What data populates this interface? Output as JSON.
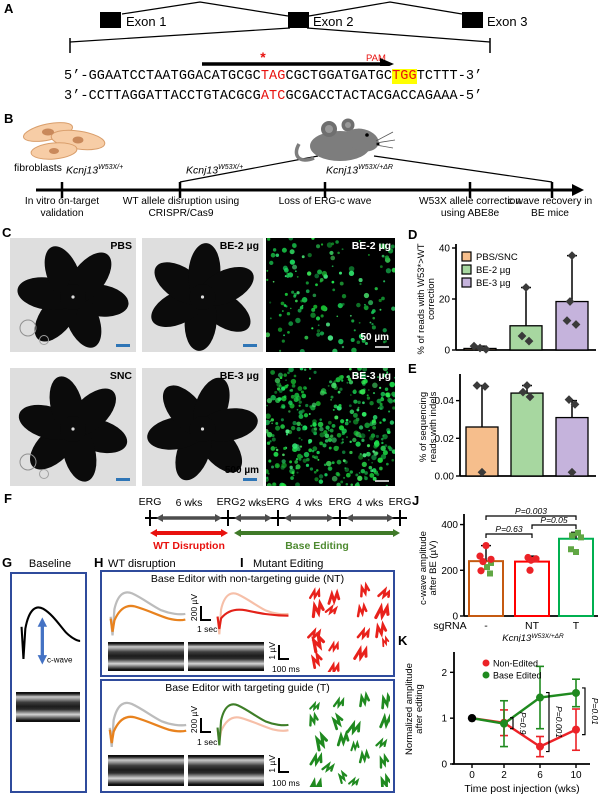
{
  "panelA": {
    "label": "A",
    "exons": [
      "Exon 1",
      "Exon 2",
      "Exon 3"
    ],
    "pam": "PAM",
    "star": "*",
    "seq_top": [
      {
        "t": "5’-GGAATCCTAATGGACATGCGC"
      },
      {
        "t": "TAG",
        "red": true
      },
      {
        "t": "CGCTGGATGATGC"
      },
      {
        "t": "TGG",
        "red": true,
        "hl": true
      },
      {
        "t": "TCTTT-3’"
      }
    ],
    "seq_bottom": [
      {
        "t": "3’-CCTTAGGATTACCTGTACGCG"
      },
      {
        "t": "ATC",
        "red": true
      },
      {
        "t": "GCGACCTACTACGACCAGAAA"
      },
      {
        "t": "-5’"
      }
    ]
  },
  "panelB": {
    "label": "B",
    "fibroblasts": "fibroblasts",
    "genotypes": [
      {
        "gene": "Kcnj13",
        "sup": "W53X/+"
      },
      {
        "gene": "Kcnj13",
        "sup": "W53X/+"
      },
      {
        "gene": "Kcnj13",
        "sup": "W53X/+ΔR"
      }
    ],
    "milestones": [
      "In vitro on-target validation",
      "WT allele disruption using CRISPR/Cas9",
      "Loss of ERG-c wave",
      "W53X allele correction using ABE8e",
      "c wave recovery in BE mice"
    ]
  },
  "panelC": {
    "label": "C",
    "tiles": [
      {
        "tag": "PBS",
        "type": "flat"
      },
      {
        "tag": "BE-2 µg",
        "type": "flat"
      },
      {
        "tag": "BE-2 µg",
        "type": "fluor",
        "scale": "50 µm",
        "density": "sparse"
      },
      {
        "tag": "SNC",
        "type": "flat"
      },
      {
        "tag": "BE-3 µg",
        "type": "flat",
        "scale": "500 µm"
      },
      {
        "tag": "BE-3 µg",
        "type": "fluor",
        "density": "dense"
      }
    ]
  },
  "panelD": {
    "label": "D"
  },
  "panelE": {
    "label": "E"
  },
  "panelF": {
    "label": "F",
    "erg": "ERG",
    "intervals": [
      "6 wks",
      "2 wks",
      "4 wks",
      "4 wks"
    ],
    "red_label": "WT Disruption",
    "green_label": "Base Editing"
  },
  "panelG": {
    "label": "G",
    "title": "Baseline",
    "cwave": "c-wave"
  },
  "panelH": {
    "label": "H",
    "title": "WT disruption",
    "box_nt": "Base Editor with non-targeting guide (NT)",
    "box_t": "Base Editor with targeting guide (T)",
    "scale_v": "200 µV",
    "scale_h": "1 sec"
  },
  "panelI": {
    "label": "I",
    "title": "Mutant Editing",
    "scale_v": "1 µV",
    "scale_h": "100 ms",
    "red_spike_count": 17,
    "green_spike_count": 20,
    "red_color": "#e8211b",
    "green_color": "#1f8a1f"
  },
  "panelJ": {
    "label": "J"
  },
  "panelK": {
    "label": "K"
  },
  "chart_data": [
    {
      "id": "D",
      "type": "bar",
      "categories": [
        "PBS/SNC",
        "BE-2 µg",
        "BE-3 µg"
      ],
      "values": [
        0.6,
        9.5,
        19
      ],
      "err_top": [
        1.5,
        24.5,
        37
      ],
      "points": [
        [
          1.5,
          0.8,
          0.3
        ],
        [
          24.5,
          5.5,
          3.5
        ],
        [
          37,
          19,
          11.5,
          10
        ]
      ],
      "bar_colors": [
        "#f6be8c",
        "#a7d7a0",
        "#c5b3dc"
      ],
      "ylabel": [
        "% of reads with W53*>WT",
        "correction"
      ],
      "yticks": [
        0,
        20,
        40
      ],
      "ytick_labels": [
        "0",
        "20",
        "40"
      ],
      "ylim": [
        0,
        40
      ],
      "legend": [
        "PBS/SNC",
        "BE-2 µg",
        "BE-3 µg"
      ],
      "legend_pos": "top-left",
      "grid": false
    },
    {
      "id": "E",
      "type": "bar",
      "categories": [
        "PBS/SNC",
        "BE-2 µg",
        "BE-3 µg"
      ],
      "values": [
        0.026,
        0.044,
        0.031
      ],
      "err_top": [
        0.048,
        0.048,
        0.04
      ],
      "points": [
        [
          0.048,
          0.0475,
          0.002
        ],
        [
          0.048,
          0.0445,
          0.042
        ],
        [
          0.0405,
          0.038,
          0.002
        ]
      ],
      "bar_colors": [
        "#f6be8c",
        "#a7d7a0",
        "#c5b3dc"
      ],
      "ylabel": [
        "% of sequencing",
        "reads with indels"
      ],
      "yticks": [
        0,
        0.02,
        0.04
      ],
      "ytick_labels": [
        "0.00",
        "0.02",
        "0.04"
      ],
      "ylim": [
        0,
        0.052
      ],
      "grid": false
    },
    {
      "id": "J",
      "type": "bar",
      "x_prefix": "sgRNA",
      "categories": [
        "-",
        "NT",
        "T"
      ],
      "values": [
        240,
        238,
        338
      ],
      "err_top": [
        308,
        262,
        366
      ],
      "edge_colors": [
        "#c55a11",
        "#ff0000",
        "#00b050"
      ],
      "points_red": [
        [
          308,
          262,
          248,
          238,
          198
        ],
        [
          256,
          250,
          244,
          200
        ],
        []
      ],
      "points_green": [
        [
          232,
          214,
          186
        ],
        [],
        [
          364,
          352,
          344,
          292,
          280
        ]
      ],
      "point_red_color": "#ec2227",
      "point_green_color": "#61a744",
      "ylabel": [
        "c-wave amplitude",
        "after BE (µV)"
      ],
      "yticks": [
        0,
        200,
        400
      ],
      "ytick_labels": [
        "0",
        "200",
        "400"
      ],
      "ylim": [
        0,
        420
      ],
      "xsub_gene": "Kcnj13",
      "xsub_sup": "W53X/+ΔR",
      "pvals": [
        {
          "text": "P=0.003",
          "a": 0,
          "b": 2
        },
        {
          "text": "P=0.05",
          "a": 1,
          "b": 2
        },
        {
          "text": "P=0.63",
          "a": 0,
          "b": 1
        }
      ],
      "grid": false
    },
    {
      "id": "K",
      "type": "line",
      "x": [
        0,
        2,
        6,
        10
      ],
      "series": [
        {
          "name": "Non-Edited",
          "color": "#ec2227",
          "values": [
            1.0,
            0.9,
            0.38,
            0.75
          ],
          "err": [
            0,
            0.28,
            0.22,
            0.45
          ]
        },
        {
          "name": "Base Edited",
          "color": "#1f8a1f",
          "values": [
            1.0,
            0.88,
            1.45,
            1.55
          ],
          "err": [
            0,
            0.5,
            0.68,
            0.3
          ]
        }
      ],
      "first_point_color": "#000000",
      "ylabel": [
        "Normalized amplitude",
        "after editing"
      ],
      "xlabel": "Time post injection (wks)",
      "yticks": [
        0,
        1,
        2
      ],
      "xticks": [
        0,
        2,
        6,
        10
      ],
      "ylim": [
        0,
        2.4
      ],
      "pvals": [
        {
          "x": 2,
          "text": "P=0.9"
        },
        {
          "x": 6,
          "text": "P=0.001"
        },
        {
          "x": 10,
          "text": "P=0.01"
        }
      ],
      "legend_pos": "top-left",
      "grid": false
    }
  ]
}
